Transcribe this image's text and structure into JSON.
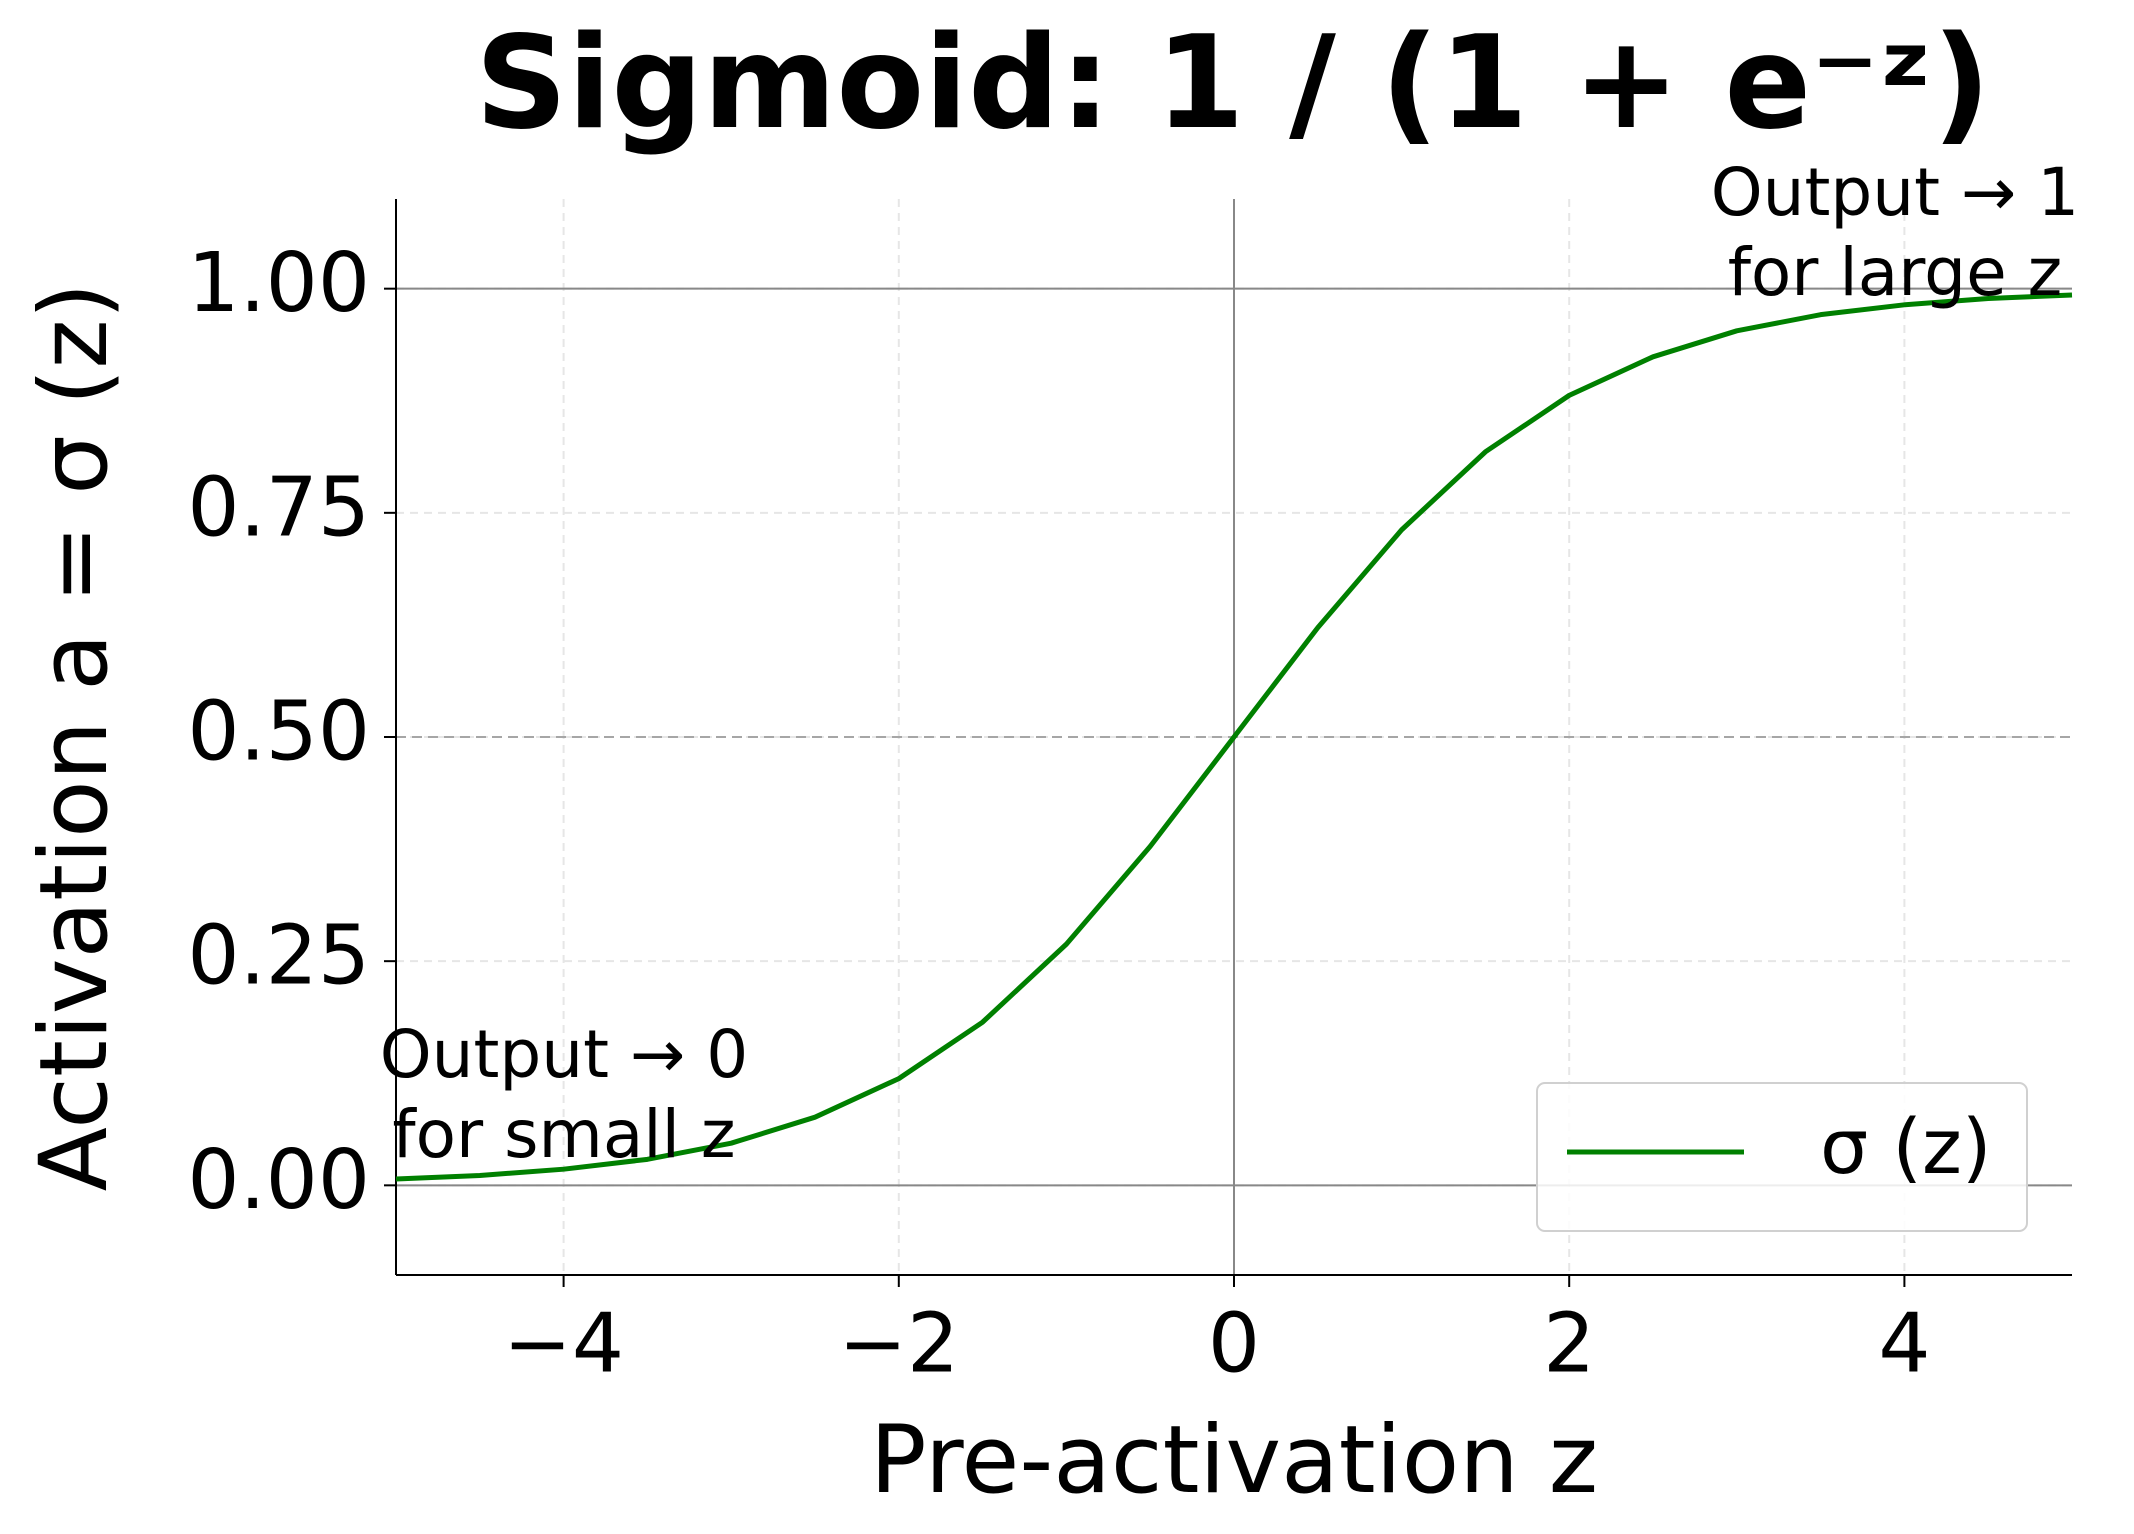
{
  "chart_data": {
    "type": "line",
    "title": "Sigmoid: 1 / (1 + e⁻ᶻ)",
    "x_label": "Pre-activation z",
    "y_label": "Activation a = σ (z)",
    "x": [
      -5,
      -4.5,
      -4,
      -3.5,
      -3,
      -2.5,
      -2,
      -1.5,
      -1,
      -0.5,
      0,
      0.5,
      1,
      1.5,
      2,
      2.5,
      3,
      3.5,
      4,
      4.5,
      5
    ],
    "series": [
      {
        "name": "σ (z)",
        "color": "#008000",
        "values": [
          0.007,
          0.011,
          0.018,
          0.029,
          0.047,
          0.076,
          0.119,
          0.182,
          0.269,
          0.378,
          0.5,
          0.622,
          0.731,
          0.818,
          0.881,
          0.924,
          0.953,
          0.971,
          0.982,
          0.989,
          0.993
        ]
      }
    ],
    "xlim": [
      -5,
      5
    ],
    "ylim": [
      -0.1,
      1.1
    ],
    "xticks": [
      {
        "value": -4,
        "label": "−4"
      },
      {
        "value": -2,
        "label": "−2"
      },
      0,
      2,
      4
    ],
    "yticks": [
      {
        "value": 0,
        "label": "0.00"
      },
      {
        "value": 0.25,
        "label": "0.25"
      },
      {
        "value": 0.5,
        "label": "0.50"
      },
      {
        "value": 0.75,
        "label": "0.75"
      },
      {
        "value": 1,
        "label": "1.00"
      }
    ],
    "grid": true,
    "reference_lines": [
      {
        "axis": "y",
        "value": 0,
        "style": "solid"
      },
      {
        "axis": "y",
        "value": 1,
        "style": "solid"
      },
      {
        "axis": "y",
        "value": 0.5,
        "style": "dashed"
      },
      {
        "axis": "x",
        "value": 0,
        "style": "solid"
      }
    ],
    "annotations": [
      {
        "lines": [
          "Output → 0",
          "for small z"
        ]
      },
      {
        "lines": [
          "Output → 1",
          "for large z"
        ]
      }
    ],
    "legend": "lower right"
  }
}
